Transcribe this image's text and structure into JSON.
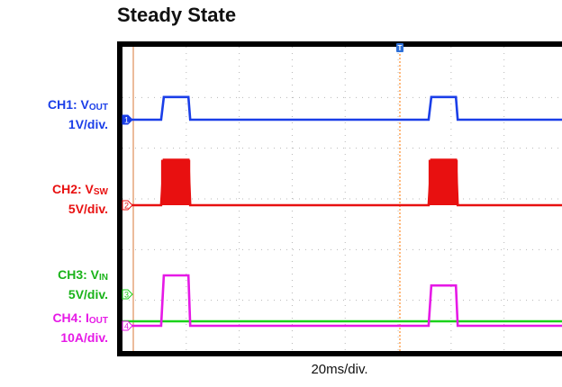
{
  "chart_data": {
    "type": "line",
    "title": "Steady State",
    "xlabel": "20ms/div.",
    "timebase_ms_per_div": 20,
    "grid": true,
    "trigger_marker": "T",
    "channels": [
      {
        "id": "1",
        "label_prefix": "CH1: V",
        "label_sub": "OUT",
        "scale": "1V/div.",
        "color": "#1a3ee8",
        "pulses": [
          {
            "start_ms": 10.5,
            "end_ms": 21.5,
            "amplitude_div": 0.45
          },
          {
            "start_ms": 111.5,
            "end_ms": 122.5,
            "amplitude_div": 0.45
          }
        ]
      },
      {
        "id": "2",
        "label_prefix": "CH2: V",
        "label_sub": "SW",
        "scale": "5V/div.",
        "color": "#e81010",
        "pulses": [
          {
            "start_ms": 10.5,
            "end_ms": 21.5,
            "amplitude_div": 0.9
          },
          {
            "start_ms": 111.5,
            "end_ms": 122.5,
            "amplitude_div": 0.9
          }
        ]
      },
      {
        "id": "3",
        "label_prefix": "CH3: V",
        "label_sub": "IN",
        "scale": "5V/div.",
        "color": "#1ad21a",
        "pulses": []
      },
      {
        "id": "4",
        "label_prefix": "CH4: I",
        "label_sub": "OUT",
        "scale": "10A/div.",
        "color": "#e619e6",
        "pulses": [
          {
            "start_ms": 10.5,
            "end_ms": 21.5,
            "amplitude_div": 1.0
          },
          {
            "start_ms": 111.5,
            "end_ms": 122.5,
            "amplitude_div": 0.8
          }
        ]
      }
    ]
  }
}
